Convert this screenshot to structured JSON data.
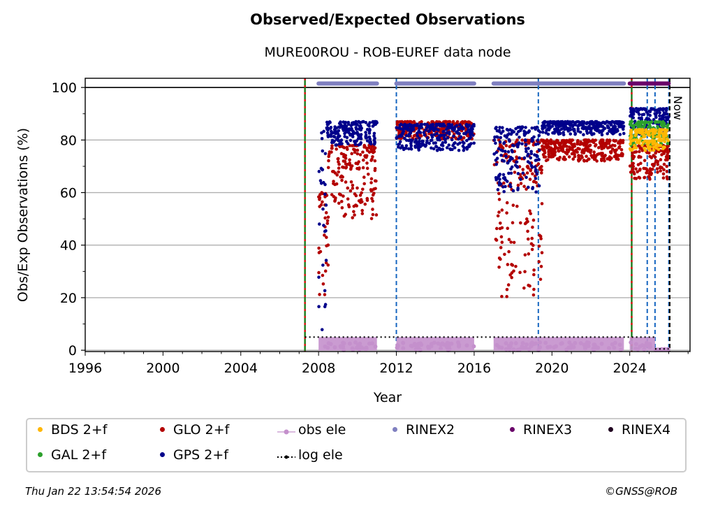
{
  "chart_data": {
    "type": "scatter",
    "title": "Observed/Expected Observations",
    "subtitle": "MURE00ROU - ROB-EUREF data node",
    "xlabel": "Year",
    "ylabel": "Obs/Exp Observations (%)",
    "xlim": [
      1996,
      2027.1
    ],
    "ylim": [
      -0.5,
      103.5
    ],
    "xticks": [
      1996,
      2000,
      2004,
      2008,
      2012,
      2016,
      2020,
      2024
    ],
    "yticks": [
      0,
      20,
      40,
      60,
      80,
      100
    ],
    "grid": true,
    "legend_position": "bottom",
    "now_label": "Now",
    "series": [
      {
        "name": "BDS 2+f",
        "color": "#ffb703",
        "segments": [
          [
            2024.0,
            2026.0,
            76,
            84
          ]
        ]
      },
      {
        "name": "GAL 2+f",
        "color": "#2ca02c",
        "segments": [
          [
            2024.0,
            2026.0,
            78,
            87
          ]
        ]
      },
      {
        "name": "GLO 2+f",
        "color": "#b30000",
        "segments": [
          [
            2008.0,
            2008.5,
            20,
            60
          ],
          [
            2008.5,
            2011.0,
            50,
            78
          ],
          [
            2012.0,
            2016.0,
            80,
            87
          ],
          [
            2017.0,
            2019.5,
            20,
            80
          ],
          [
            2019.5,
            2023.7,
            72,
            80
          ],
          [
            2024.0,
            2026.0,
            65,
            78
          ]
        ]
      },
      {
        "name": "GPS 2+f",
        "color": "#00008b",
        "segments": [
          [
            2008.0,
            2008.4,
            5,
            85
          ],
          [
            2008.4,
            2011.0,
            78,
            87
          ],
          [
            2012.0,
            2016.0,
            76,
            86
          ],
          [
            2017.0,
            2019.4,
            60,
            85
          ],
          [
            2019.5,
            2023.7,
            82,
            87
          ],
          [
            2024.0,
            2026.0,
            82,
            92
          ]
        ]
      },
      {
        "name": "obs ele",
        "color": "#c490cc",
        "segments": [
          [
            2008.0,
            2011.0,
            0,
            5
          ],
          [
            2012.0,
            2016.0,
            0,
            5
          ],
          [
            2017.0,
            2023.7,
            0,
            5
          ],
          [
            2024.0,
            2025.3,
            0,
            5
          ],
          [
            2025.3,
            2026.0,
            0,
            1
          ]
        ]
      },
      {
        "name": "log ele",
        "color": "#000000",
        "segments": [
          [
            2007.3,
            2025.3,
            5,
            5
          ],
          [
            2025.3,
            2026.0,
            0.5,
            0.5
          ]
        ]
      },
      {
        "name": "RINEX2",
        "color": "#8080c0",
        "segments": [
          [
            2008.0,
            2011.0,
            101.5,
            101.5
          ],
          [
            2012.0,
            2016.0,
            101.5,
            101.5
          ],
          [
            2017.0,
            2023.7,
            101.5,
            101.5
          ]
        ]
      },
      {
        "name": "RINEX3",
        "color": "#6a006a",
        "segments": [
          [
            2024.0,
            2026.0,
            101.5,
            101.5
          ]
        ]
      },
      {
        "name": "RINEX4",
        "color": "#200020",
        "segments": []
      }
    ],
    "event_lines": [
      {
        "x": 2007.3,
        "style": "red-green"
      },
      {
        "x": 2012.0,
        "style": "blue-dashed"
      },
      {
        "x": 2019.3,
        "style": "blue-dashed"
      },
      {
        "x": 2024.1,
        "style": "red-green"
      },
      {
        "x": 2024.9,
        "style": "blue-dashed"
      },
      {
        "x": 2025.3,
        "style": "blue-dashed"
      },
      {
        "x": 2026.05,
        "style": "black-dashed"
      }
    ]
  },
  "legend": [
    {
      "label": "BDS 2+f",
      "color": "#ffb703",
      "kind": "dot"
    },
    {
      "label": "GLO 2+f",
      "color": "#b30000",
      "kind": "dot"
    },
    {
      "label": "obs ele",
      "color": "#c490cc",
      "kind": "line"
    },
    {
      "label": "RINEX2",
      "color": "#8080c0",
      "kind": "dot"
    },
    {
      "label": "RINEX3",
      "color": "#6a006a",
      "kind": "dot"
    },
    {
      "label": "RINEX4",
      "color": "#200020",
      "kind": "dot"
    },
    {
      "label": "GAL 2+f",
      "color": "#2ca02c",
      "kind": "dot"
    },
    {
      "label": "GPS 2+f",
      "color": "#00008b",
      "kind": "dot"
    },
    {
      "label": "log ele",
      "color": "#000000",
      "kind": "dotted"
    }
  ],
  "footer": {
    "timestamp": "Thu Jan 22 13:54:54 2026",
    "credit": "©GNSS@ROB"
  }
}
